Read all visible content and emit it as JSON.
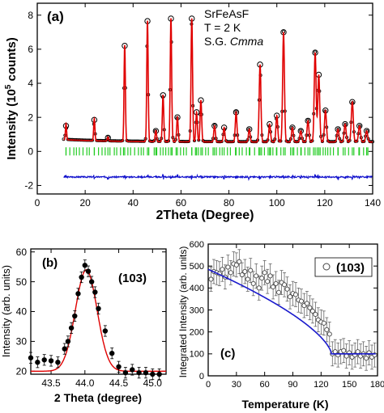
{
  "chart_data": [
    {
      "panel": "(a)",
      "type": "scatter",
      "annotation": [
        "SrFeAsF",
        "T = 2 K",
        "S.G. ",
        "Cmma"
      ],
      "xlabel": "2Theta (Degree)",
      "ylabel": "Intensity (10",
      "ylabel_sup": "5",
      "ylabel_tail": " counts)",
      "xlim": [
        0,
        140
      ],
      "ylim": [
        -2.5,
        8.7
      ],
      "x_ticks": [
        0,
        20,
        40,
        60,
        80,
        100,
        120,
        140
      ],
      "x_tick_labels": [
        "0",
        "20",
        "40",
        "60",
        "80",
        "100",
        "120",
        "140"
      ],
      "y_ticks": [
        -2,
        0,
        2,
        4,
        6,
        8
      ],
      "y_tick_labels": [
        "-2",
        "0",
        "2",
        "4",
        "6",
        "8"
      ],
      "background_level": 0.55,
      "peaks": [
        {
          "x": 12.0,
          "y": 1.5
        },
        {
          "x": 23.8,
          "y": 1.85
        },
        {
          "x": 29.5,
          "y": 0.8
        },
        {
          "x": 36.5,
          "y": 6.2
        },
        {
          "x": 46.0,
          "y": 7.65
        },
        {
          "x": 49.5,
          "y": 1.2
        },
        {
          "x": 52.5,
          "y": 3.3
        },
        {
          "x": 55.8,
          "y": 7.8
        },
        {
          "x": 58.5,
          "y": 2.0
        },
        {
          "x": 64.5,
          "y": 7.8
        },
        {
          "x": 66.5,
          "y": 2.3
        },
        {
          "x": 68.3,
          "y": 3.0
        },
        {
          "x": 74.0,
          "y": 1.5
        },
        {
          "x": 78.0,
          "y": 1.4
        },
        {
          "x": 83.0,
          "y": 2.3
        },
        {
          "x": 88.5,
          "y": 1.3
        },
        {
          "x": 93.0,
          "y": 5.1
        },
        {
          "x": 97.0,
          "y": 1.6
        },
        {
          "x": 100.0,
          "y": 2.1
        },
        {
          "x": 102.8,
          "y": 7.0
        },
        {
          "x": 106.5,
          "y": 1.4
        },
        {
          "x": 110.0,
          "y": 1.2
        },
        {
          "x": 113.0,
          "y": 1.8
        },
        {
          "x": 116.0,
          "y": 5.8
        },
        {
          "x": 117.5,
          "y": 4.5
        },
        {
          "x": 120.3,
          "y": 2.4
        },
        {
          "x": 125.5,
          "y": 1.3
        },
        {
          "x": 128.5,
          "y": 1.6
        },
        {
          "x": 131.5,
          "y": 2.9
        },
        {
          "x": 134.5,
          "y": 1.5
        },
        {
          "x": 137.5,
          "y": 1.2
        }
      ],
      "bragg_row_y": 0.0,
      "difference_baseline_y": -1.5,
      "colors": {
        "observed": "#000000",
        "calculated": "#e00000",
        "bragg": "#22cc22",
        "difference": "#1010cc"
      }
    },
    {
      "panel": "(b)",
      "type": "scatter",
      "label": "(103)",
      "xlabel": "2 Theta (degree)",
      "ylabel": "Intensity (arb. units)",
      "xlim": [
        43.2,
        45.2
      ],
      "ylim": [
        19,
        61
      ],
      "x_ticks": [
        43.5,
        44.0,
        44.5,
        45.0
      ],
      "x_tick_labels": [
        "43.5",
        "44.0",
        "44.5",
        "45.0"
      ],
      "y_ticks": [
        20,
        30,
        40,
        50,
        60
      ],
      "y_tick_labels": [
        "20",
        "30",
        "40",
        "50",
        "60"
      ],
      "points": [
        {
          "x": 43.2,
          "y": 24.5
        },
        {
          "x": 43.3,
          "y": 23.0
        },
        {
          "x": 43.4,
          "y": 23.8
        },
        {
          "x": 43.5,
          "y": 23.5
        },
        {
          "x": 43.6,
          "y": 23.0
        },
        {
          "x": 43.7,
          "y": 27.5
        },
        {
          "x": 43.75,
          "y": 30.0
        },
        {
          "x": 43.8,
          "y": 34.5
        },
        {
          "x": 43.85,
          "y": 38.5
        },
        {
          "x": 43.9,
          "y": 46.0
        },
        {
          "x": 43.95,
          "y": 51.5
        },
        {
          "x": 44.0,
          "y": 55.5
        },
        {
          "x": 44.05,
          "y": 53.5
        },
        {
          "x": 44.1,
          "y": 50.0
        },
        {
          "x": 44.15,
          "y": 46.5
        },
        {
          "x": 44.2,
          "y": 41.0
        },
        {
          "x": 44.3,
          "y": 33.5
        },
        {
          "x": 44.4,
          "y": 26.0
        },
        {
          "x": 44.5,
          "y": 21.5
        },
        {
          "x": 44.6,
          "y": 19.5
        },
        {
          "x": 44.7,
          "y": 20.5
        },
        {
          "x": 44.8,
          "y": 19.5
        },
        {
          "x": 44.9,
          "y": 19.5
        },
        {
          "x": 45.0,
          "y": 19.0
        },
        {
          "x": 45.1,
          "y": 19.0
        }
      ],
      "error": 1.8,
      "fit": {
        "baseline": 20,
        "amplitude": 34,
        "center": 44.02,
        "sigma": 0.16
      },
      "colors": {
        "points": "#000000",
        "fit": "#e00000"
      }
    },
    {
      "panel": "(c)",
      "type": "scatter",
      "legend": "(103)",
      "legend_position": "top-right",
      "xlabel": "Temperature (K)",
      "ylabel": "Integrated Intensity (arb. units)",
      "xlim": [
        0,
        180
      ],
      "ylim": [
        0,
        600
      ],
      "x_ticks": [
        0,
        30,
        60,
        90,
        120,
        150,
        180
      ],
      "x_tick_labels": [
        "0",
        "30",
        "60",
        "90",
        "120",
        "150",
        "180"
      ],
      "y_ticks": [
        0,
        100,
        200,
        300,
        400,
        500,
        600
      ],
      "y_tick_labels": [
        "0",
        "100",
        "200",
        "300",
        "400",
        "500",
        "600"
      ],
      "points": [
        {
          "x": 3,
          "y": 440
        },
        {
          "x": 6,
          "y": 475
        },
        {
          "x": 9,
          "y": 470
        },
        {
          "x": 12,
          "y": 465
        },
        {
          "x": 15,
          "y": 485
        },
        {
          "x": 18,
          "y": 450
        },
        {
          "x": 21,
          "y": 495
        },
        {
          "x": 24,
          "y": 470
        },
        {
          "x": 27,
          "y": 510
        },
        {
          "x": 30,
          "y": 505
        },
        {
          "x": 33,
          "y": 520
        },
        {
          "x": 36,
          "y": 460
        },
        {
          "x": 39,
          "y": 475
        },
        {
          "x": 42,
          "y": 440
        },
        {
          "x": 45,
          "y": 480
        },
        {
          "x": 48,
          "y": 420
        },
        {
          "x": 51,
          "y": 455
        },
        {
          "x": 54,
          "y": 400
        },
        {
          "x": 57,
          "y": 445
        },
        {
          "x": 60,
          "y": 470
        },
        {
          "x": 63,
          "y": 430
        },
        {
          "x": 66,
          "y": 455
        },
        {
          "x": 69,
          "y": 405
        },
        {
          "x": 72,
          "y": 420
        },
        {
          "x": 75,
          "y": 380
        },
        {
          "x": 78,
          "y": 425
        },
        {
          "x": 81,
          "y": 415
        },
        {
          "x": 84,
          "y": 395
        },
        {
          "x": 87,
          "y": 360
        },
        {
          "x": 90,
          "y": 375
        },
        {
          "x": 93,
          "y": 370
        },
        {
          "x": 96,
          "y": 345
        },
        {
          "x": 99,
          "y": 340
        },
        {
          "x": 102,
          "y": 320
        },
        {
          "x": 105,
          "y": 330
        },
        {
          "x": 108,
          "y": 310
        },
        {
          "x": 111,
          "y": 295
        },
        {
          "x": 114,
          "y": 280
        },
        {
          "x": 117,
          "y": 255
        },
        {
          "x": 120,
          "y": 245
        },
        {
          "x": 123,
          "y": 240
        },
        {
          "x": 126,
          "y": 210
        },
        {
          "x": 129,
          "y": 190
        },
        {
          "x": 132,
          "y": 100
        },
        {
          "x": 135,
          "y": 110
        },
        {
          "x": 138,
          "y": 95
        },
        {
          "x": 141,
          "y": 110
        },
        {
          "x": 144,
          "y": 115
        },
        {
          "x": 147,
          "y": 90
        },
        {
          "x": 150,
          "y": 105
        },
        {
          "x": 153,
          "y": 85
        },
        {
          "x": 156,
          "y": 95
        },
        {
          "x": 159,
          "y": 110
        },
        {
          "x": 162,
          "y": 90
        },
        {
          "x": 165,
          "y": 100
        },
        {
          "x": 168,
          "y": 80
        },
        {
          "x": 171,
          "y": 105
        },
        {
          "x": 174,
          "y": 85
        },
        {
          "x": 177,
          "y": 95
        }
      ],
      "error": 55,
      "fit": {
        "i0": 385,
        "tn": 131,
        "beta": 0.33,
        "background": 100
      },
      "colors": {
        "points": "#444444",
        "fit": "#1a1acc"
      }
    }
  ]
}
